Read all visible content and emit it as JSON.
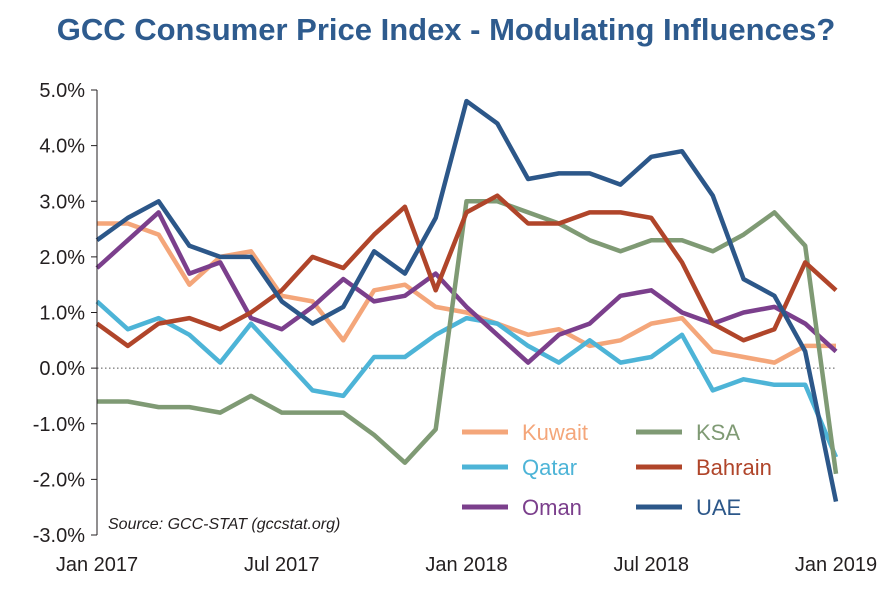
{
  "chart_data": {
    "type": "line",
    "title": "GCC Consumer Price Index - Modulating Influences?",
    "source": "Source: GCC-STAT (gccstat.org)",
    "xlabel": "",
    "ylabel": "",
    "ylim": [
      -3.0,
      5.0
    ],
    "yticks": [
      -3,
      -2,
      -1,
      0,
      1,
      2,
      3,
      4,
      5
    ],
    "ytick_labels": [
      "-3.0%",
      "-2.0%",
      "-1.0%",
      "0.0%",
      "1.0%",
      "2.0%",
      "3.0%",
      "4.0%",
      "5.0%"
    ],
    "x_count": 25,
    "xtick_labels": [
      {
        "index": 0,
        "label": "Jan 2017"
      },
      {
        "index": 6,
        "label": "Jul 2017"
      },
      {
        "index": 12,
        "label": "Jan 2018"
      },
      {
        "index": 18,
        "label": "Jul 2018"
      },
      {
        "index": 24,
        "label": "Jan 2019"
      }
    ],
    "zero_line": "dotted",
    "legend_position": "bottom-right",
    "series": [
      {
        "name": "Kuwait",
        "color": "#f4a67a",
        "values": [
          2.6,
          2.6,
          2.4,
          1.5,
          2.0,
          2.1,
          1.3,
          1.2,
          0.5,
          1.4,
          1.5,
          1.1,
          1.0,
          0.8,
          0.6,
          0.7,
          0.4,
          0.5,
          0.8,
          0.9,
          0.3,
          0.2,
          0.1,
          0.4,
          0.4
        ]
      },
      {
        "name": "Qatar",
        "color": "#4db4d7",
        "values": [
          1.2,
          0.7,
          0.9,
          0.6,
          0.1,
          0.8,
          0.2,
          -0.4,
          -0.5,
          0.2,
          0.2,
          0.6,
          0.9,
          0.8,
          0.4,
          0.1,
          0.5,
          0.1,
          0.2,
          0.6,
          -0.4,
          -0.2,
          -0.3,
          -0.3,
          -1.6
        ]
      },
      {
        "name": "Oman",
        "color": "#7b3f8c",
        "values": [
          1.8,
          2.3,
          2.8,
          1.7,
          1.9,
          0.9,
          0.7,
          1.1,
          1.6,
          1.2,
          1.3,
          1.7,
          1.1,
          0.6,
          0.1,
          0.6,
          0.8,
          1.3,
          1.4,
          1.0,
          0.8,
          1.0,
          1.1,
          0.8,
          0.3
        ]
      },
      {
        "name": "KSA",
        "color": "#7f9a74",
        "values": [
          -0.6,
          -0.6,
          -0.7,
          -0.7,
          -0.8,
          -0.5,
          -0.8,
          -0.8,
          -0.8,
          -1.2,
          -1.7,
          -1.1,
          3.0,
          3.0,
          2.8,
          2.6,
          2.3,
          2.1,
          2.3,
          2.3,
          2.1,
          2.4,
          2.8,
          2.2,
          -1.9
        ]
      },
      {
        "name": "Bahrain",
        "color": "#b0452a",
        "values": [
          0.8,
          0.4,
          0.8,
          0.9,
          0.7,
          1.0,
          1.4,
          2.0,
          1.8,
          2.4,
          2.9,
          1.4,
          2.8,
          3.1,
          2.6,
          2.6,
          2.8,
          2.8,
          2.7,
          1.9,
          0.8,
          0.5,
          0.7,
          1.9,
          1.4
        ]
      },
      {
        "name": "UAE",
        "color": "#2c5789",
        "values": [
          2.3,
          2.7,
          3.0,
          2.2,
          2.0,
          2.0,
          1.2,
          0.8,
          1.1,
          2.1,
          1.7,
          2.7,
          4.8,
          4.4,
          3.4,
          3.5,
          3.5,
          3.3,
          3.8,
          3.9,
          3.1,
          1.6,
          1.3,
          0.3,
          -2.4
        ]
      }
    ]
  }
}
